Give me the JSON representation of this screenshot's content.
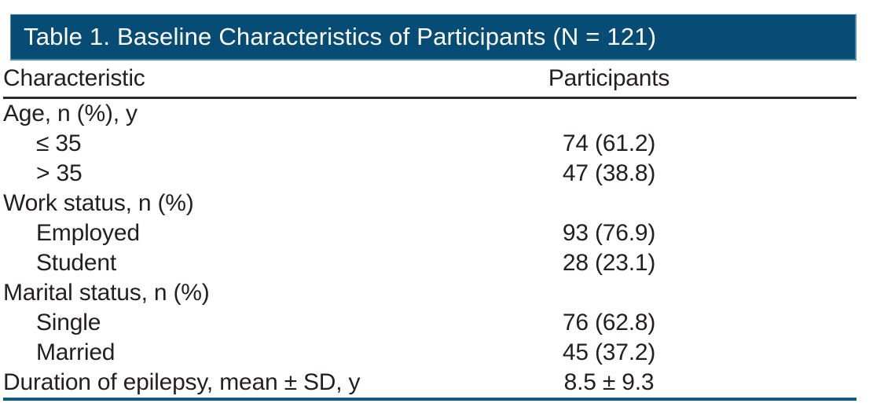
{
  "table": {
    "title": "Table 1. Baseline Characteristics of Participants (N = 121)",
    "columns": [
      "Characteristic",
      "Participants"
    ],
    "rows": [
      {
        "label": "Age, n (%), y",
        "value": "",
        "indent": false
      },
      {
        "label": "≤ 35",
        "value": "74 (61.2)",
        "indent": true
      },
      {
        "label": "> 35",
        "value": "47 (38.8)",
        "indent": true
      },
      {
        "label": "Work status, n (%)",
        "value": "",
        "indent": false
      },
      {
        "label": "Employed",
        "value": "93 (76.9)",
        "indent": true
      },
      {
        "label": "Student",
        "value": "28 (23.1)",
        "indent": true
      },
      {
        "label": "Marital status, n (%)",
        "value": "",
        "indent": false
      },
      {
        "label": "Single",
        "value": "76 (62.8)",
        "indent": true
      },
      {
        "label": "Married",
        "value": "45 (37.2)",
        "indent": true
      },
      {
        "label": "Duration of epilepsy, mean ± SD, y",
        "value": "8.5 ± 9.3",
        "indent": false
      }
    ],
    "colors": {
      "header_bg": "#074c74",
      "header_edge": "#4e8cb0",
      "text": "#231f20",
      "rule_dark": "#2b2a2a",
      "rule_blue": "#135a82",
      "page_bg": "#ffffff"
    }
  }
}
